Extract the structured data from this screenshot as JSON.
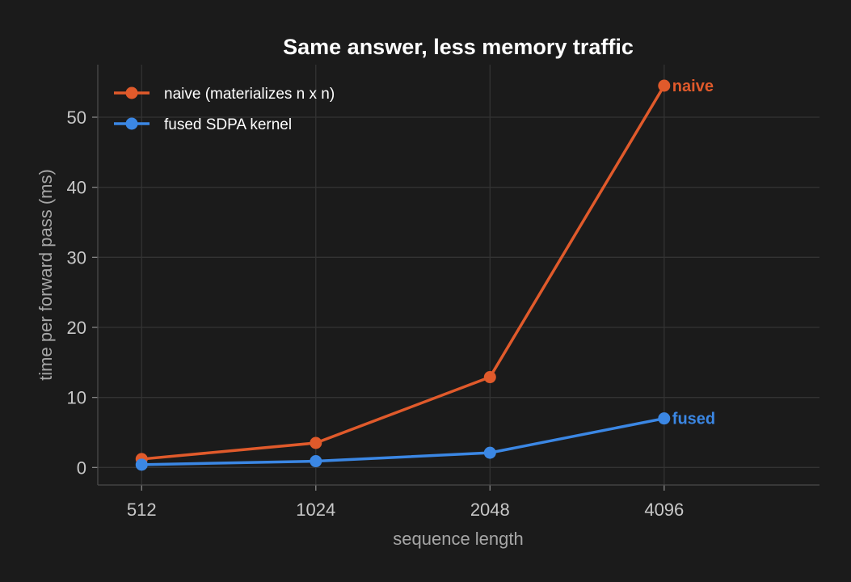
{
  "chart_data": {
    "type": "line",
    "title": "Same answer, less memory traffic",
    "xlabel": "sequence length",
    "ylabel": "time per forward pass (ms)",
    "x": [
      512,
      1024,
      2048,
      4096
    ],
    "x_tick_labels": [
      "512",
      "1024",
      "2048",
      "4096"
    ],
    "y_ticks": [
      0,
      10,
      20,
      30,
      40,
      50
    ],
    "y_tick_labels": [
      "0",
      "10",
      "20",
      "30",
      "40",
      "50"
    ],
    "x_scale": "log2",
    "xlim": [
      430,
      7600
    ],
    "ylim": [
      -2.5,
      57.5
    ],
    "grid": true,
    "legend_position": "top-left",
    "series": [
      {
        "name": "naive (materializes n x n)",
        "end_label": "naive",
        "color": "#e05a2b",
        "values": [
          1.2,
          3.5,
          12.9,
          54.5
        ]
      },
      {
        "name": "fused SDPA kernel",
        "end_label": "fused",
        "color": "#3b87e4",
        "values": [
          0.4,
          0.9,
          2.1,
          7.0
        ]
      }
    ]
  }
}
